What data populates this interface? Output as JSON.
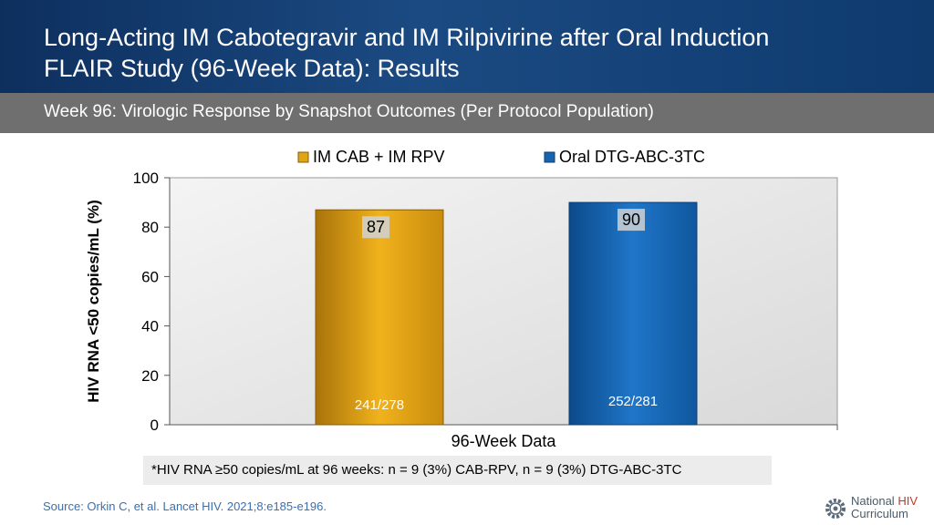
{
  "header": {
    "title_line1": "Long-Acting IM Cabotegravir and IM Rilpivirine after Oral Induction",
    "title_line2": "FLAIR Study (96-Week Data): Results"
  },
  "subtitle": "Week 96: Virologic Response by Snapshot Outcomes (Per Protocol Population)",
  "chart_data": {
    "type": "bar",
    "categories": [
      "96-Week Data"
    ],
    "series": [
      {
        "name": "IM CAB + IM RPV",
        "values": [
          87
        ],
        "fraction_label": "241/278",
        "color": "#d89b10"
      },
      {
        "name": "Oral DTG-ABC-3TC",
        "values": [
          90
        ],
        "fraction_label": "252/281",
        "color": "#1763ad"
      }
    ],
    "title": "",
    "xlabel": "96-Week Data",
    "ylabel": "HIV RNA <50 copies/mL (%)",
    "ylim": [
      0,
      100
    ],
    "yticks": [
      0,
      20,
      40,
      60,
      80,
      100
    ],
    "legend": "top"
  },
  "footnote": "*HIV RNA ≥50 copies/mL at 96 weeks: n = 9 (3%) CAB-RPV, n = 9 (3%) DTG-ABC-3TC",
  "source": "Source: Orkin C, et al. Lancet HIV. 2021;8:e185-e196.",
  "logo": {
    "word1": "National",
    "word2": "HIV",
    "word3": "Curriculum"
  }
}
